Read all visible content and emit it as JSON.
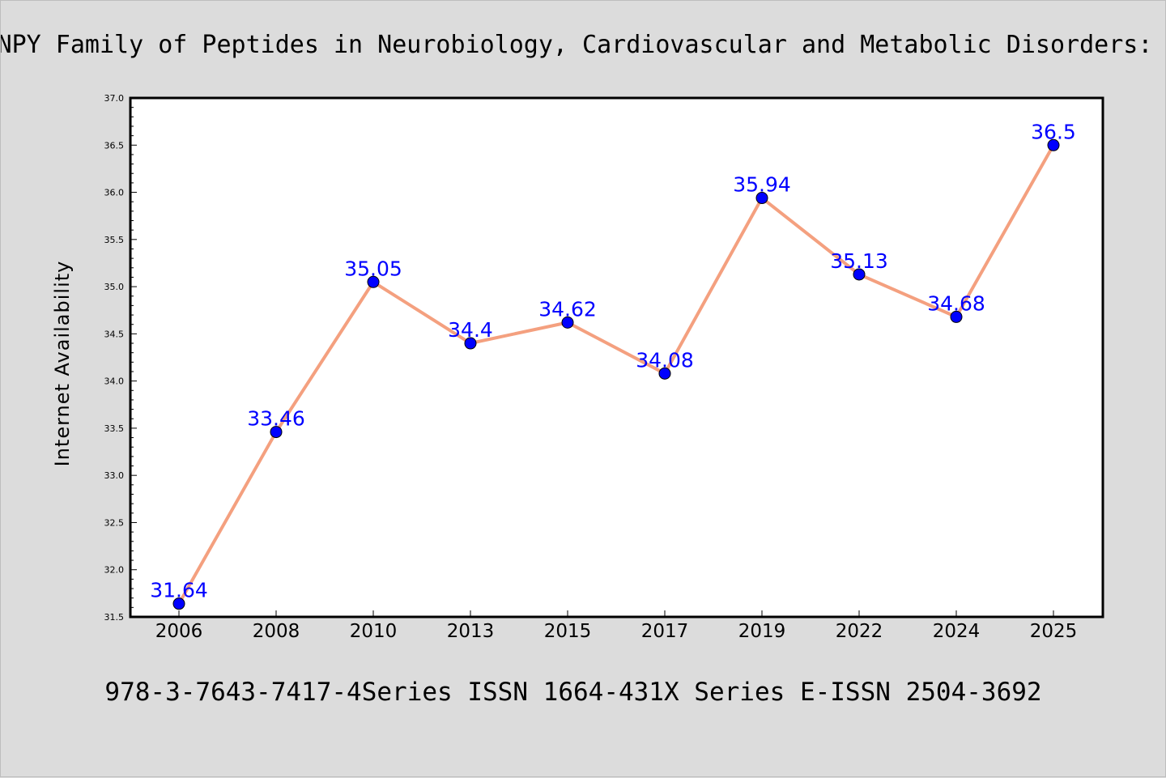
{
  "title": "NPY Family of Peptides in Neurobiology, Cardiovascular and Metabolic Disorders:",
  "footer": "978-3-7643-7417-4Series ISSN 1664-431X Series E-ISSN 2504-3692",
  "colors": {
    "background": "#dcdcdc",
    "plot_area": "#ffffff",
    "line": "#f4a07f",
    "marker": "#0000ff",
    "data_label": "#0000ff"
  },
  "chart_data": {
    "type": "line",
    "title": "NPY Family of Peptides in Neurobiology, Cardiovascular and Metabolic Disorders:",
    "xlabel": "",
    "ylabel": "Internet Availability",
    "categories": [
      "2006",
      "2008",
      "2010",
      "2013",
      "2015",
      "2017",
      "2019",
      "2022",
      "2024",
      "2025"
    ],
    "series": [
      {
        "values": [
          31.64,
          33.46,
          35.05,
          34.4,
          34.62,
          34.08,
          35.94,
          35.13,
          34.68,
          36.5
        ],
        "labels": [
          "31.64",
          "33.46",
          "35.05",
          "34.4",
          "34.62",
          "34.08",
          "35.94",
          "35.13",
          "34.68",
          "36.5"
        ]
      }
    ],
    "ylim": [
      31.5,
      37.0
    ],
    "yticks": [
      "31.5",
      "32.0",
      "32.5",
      "33.0",
      "33.5",
      "34.0",
      "34.5",
      "35.0",
      "35.5",
      "36.0",
      "36.5",
      "37.0"
    ],
    "grid": false,
    "legend": "none"
  }
}
